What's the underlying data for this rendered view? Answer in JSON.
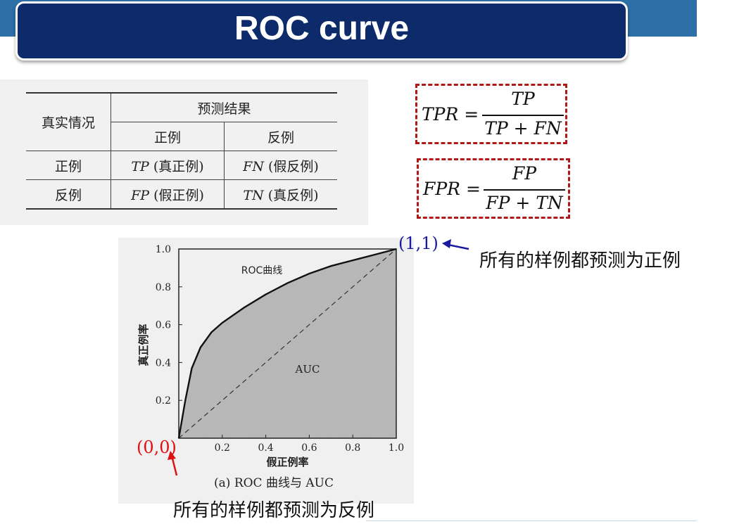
{
  "title": "ROC curve",
  "table": {
    "header_actual": "真实情况",
    "header_predicted": "预测结果",
    "col_positive": "正例",
    "col_negative": "反例",
    "rows": [
      {
        "label": "正例",
        "c1_abbr": "TP",
        "c1_desc": "(真正例)",
        "c2_abbr": "FN",
        "c2_desc": "(假反例)"
      },
      {
        "label": "反例",
        "c1_abbr": "FP",
        "c1_desc": "(假正例)",
        "c2_abbr": "TN",
        "c2_desc": "(真反例)"
      }
    ]
  },
  "formulas": {
    "tpr": {
      "lhs": "TPR =",
      "numerator": "TP",
      "denominator": "TP + FN"
    },
    "fpr": {
      "lhs": "FPR =",
      "numerator": "FP",
      "denominator": "FP + TN"
    }
  },
  "annotations": {
    "point_top": "(1,1)",
    "point_bottom": "(0,0)",
    "note_top": "所有的样例都预测为正例",
    "note_bottom": "所有的样例都预测为反例",
    "color_top": "#1a1aa0",
    "color_bottom": "#e01010"
  },
  "chart_data": {
    "type": "line",
    "caption": "(a) ROC 曲线与 AUC",
    "xlabel": "假正例率",
    "ylabel": "真正例率",
    "xlim": [
      0,
      1
    ],
    "ylim": [
      0,
      1
    ],
    "xticks": [
      "0.2",
      "0.4",
      "0.6",
      "0.8",
      "1.0"
    ],
    "yticks": [
      "0.2",
      "0.4",
      "0.6",
      "0.8",
      "1.0"
    ],
    "curve_label": "ROC曲线",
    "area_label": "AUC",
    "series": [
      {
        "name": "ROC曲线",
        "x": [
          0,
          0.03,
          0.06,
          0.1,
          0.15,
          0.2,
          0.3,
          0.4,
          0.5,
          0.6,
          0.7,
          0.8,
          0.9,
          1.0
        ],
        "y": [
          0,
          0.2,
          0.37,
          0.48,
          0.56,
          0.61,
          0.69,
          0.76,
          0.82,
          0.87,
          0.91,
          0.94,
          0.97,
          1.0
        ]
      },
      {
        "name": "",
        "style": "dashed",
        "x": [
          0,
          1
        ],
        "y": [
          0,
          1
        ]
      }
    ]
  }
}
